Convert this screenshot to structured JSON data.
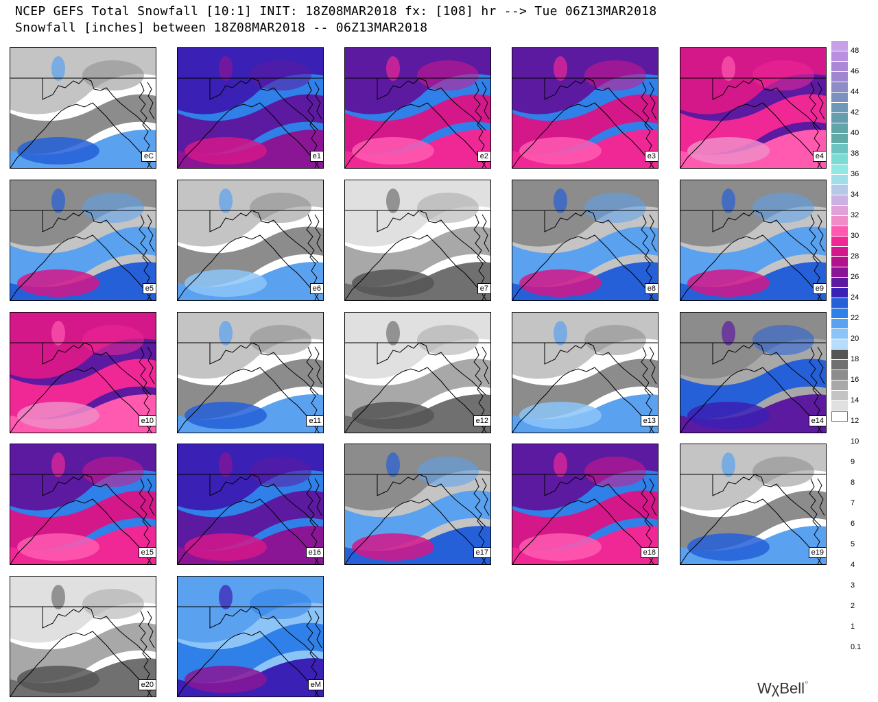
{
  "header": {
    "line1": "NCEP GEFS Total Snowfall [10:1] INIT: 18Z08MAR2018 fx: [108] hr --> Tue 06Z13MAR2018",
    "line2": "Snowfall [inches] between 18Z08MAR2018 -- 06Z13MAR2018"
  },
  "members": [
    {
      "label": "eC",
      "intensity": "light-south"
    },
    {
      "label": "e1",
      "intensity": "purple"
    },
    {
      "label": "e2",
      "intensity": "pink"
    },
    {
      "label": "e3",
      "intensity": "pink"
    },
    {
      "label": "e4",
      "intensity": "pink-heavy"
    },
    {
      "label": "e5",
      "intensity": "blue-south"
    },
    {
      "label": "e6",
      "intensity": "light-west"
    },
    {
      "label": "e7",
      "intensity": "gray"
    },
    {
      "label": "e8",
      "intensity": "blue-south"
    },
    {
      "label": "e9",
      "intensity": "blue-south"
    },
    {
      "label": "e10",
      "intensity": "pink-heavy"
    },
    {
      "label": "e11",
      "intensity": "light-south"
    },
    {
      "label": "e12",
      "intensity": "gray"
    },
    {
      "label": "e13",
      "intensity": "light-west"
    },
    {
      "label": "e14",
      "intensity": "purple-south"
    },
    {
      "label": "e15",
      "intensity": "pink"
    },
    {
      "label": "e16",
      "intensity": "purple"
    },
    {
      "label": "e17",
      "intensity": "blue-south"
    },
    {
      "label": "e18",
      "intensity": "pink"
    },
    {
      "label": "e19",
      "intensity": "light-south"
    },
    {
      "label": "e20",
      "intensity": "gray"
    },
    {
      "label": "eM",
      "intensity": "blue-purple"
    }
  ],
  "colorbar": {
    "labels": [
      "48",
      "46",
      "44",
      "42",
      "40",
      "38",
      "36",
      "34",
      "32",
      "30",
      "28",
      "26",
      "24",
      "22",
      "20",
      "18",
      "16",
      "14",
      "12",
      "10",
      "9",
      "8",
      "7",
      "6",
      "5",
      "4",
      "3",
      "2",
      "1",
      "0.1"
    ],
    "colors": [
      "#c7a0e8",
      "#b98fe0",
      "#ab87d8",
      "#9e87cf",
      "#8d8cc6",
      "#7c91bf",
      "#6f98b7",
      "#679ead",
      "#62a4a8",
      "#62aaa6",
      "#6cc3c2",
      "#7ddbd4",
      "#8fe8e3",
      "#a0dfea",
      "#b7c8e6",
      "#cdb0e3",
      "#e0a0d8",
      "#f08cc8",
      "#ff5ab0",
      "#f02896",
      "#d4188a",
      "#b2128e",
      "#8a1696",
      "#5c1aa0",
      "#3a20b4",
      "#2560d8",
      "#2f80e8",
      "#5aa2f0",
      "#8cc4f8",
      "#b8dcfb",
      "#555555",
      "#707070",
      "#8c8c8c",
      "#a8a8a8",
      "#c4c4c4",
      "#e0e0e0"
    ],
    "accent_pink": "#ff3c9a"
  },
  "branding": {
    "text": "WχBell"
  }
}
